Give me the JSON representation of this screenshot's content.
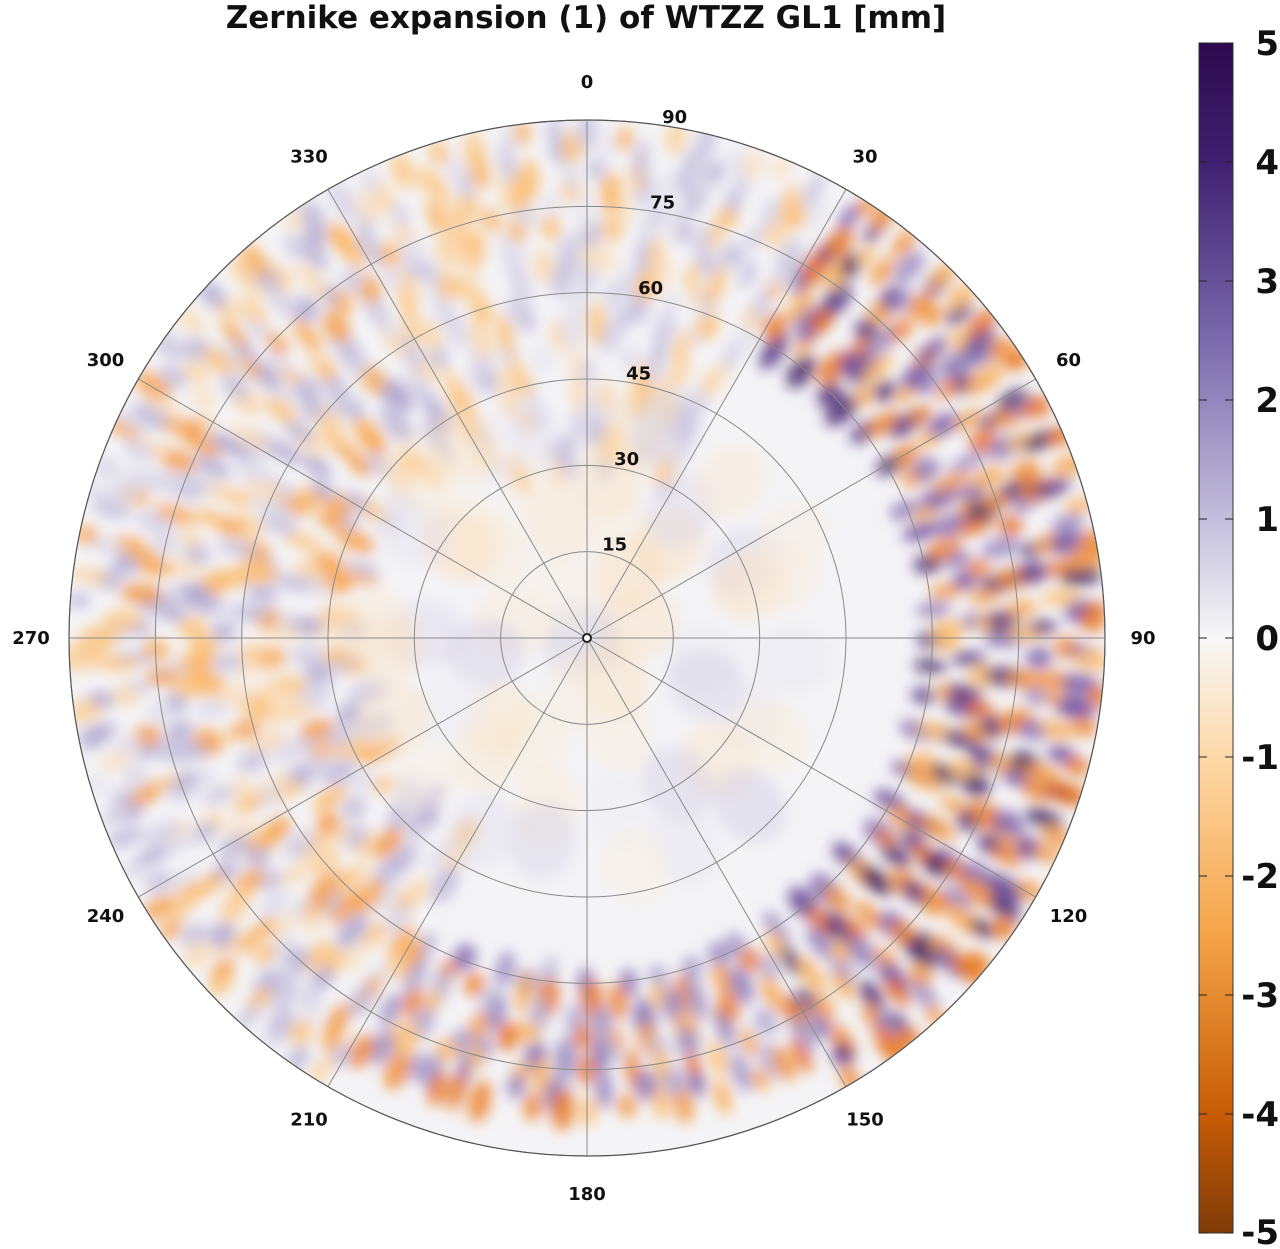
{
  "title": "Zernike expansion (1) of WTZZ GL1 [mm]",
  "chart_data": {
    "type": "heatmap",
    "projection": "polar",
    "title": "Zernike expansion (1) of WTZZ GL1 [mm]",
    "azimuth_ticks": [
      "0",
      "30",
      "60",
      "90",
      "120",
      "150",
      "180",
      "210",
      "240",
      "270",
      "300",
      "330"
    ],
    "radial_ticks": [
      "15",
      "30",
      "45",
      "60",
      "75",
      "90"
    ],
    "radial_range": [
      0,
      90
    ],
    "azimuth_direction": "clockwise",
    "azimuth_zero": "top",
    "grid": true,
    "colorbar": {
      "range": [
        -5,
        5
      ],
      "ticks": [
        "5",
        "4",
        "3",
        "2",
        "1",
        "0",
        "-1",
        "-2",
        "-3",
        "-4",
        "-5"
      ],
      "colors": {
        "max": "#2d0a4e",
        "high": "#5e3c99",
        "mid_high": "#b2abd2",
        "zero": "#f7f7f7",
        "mid_low": "#fdb863",
        "low": "#e66101",
        "min": "#7f3b08"
      },
      "position": "right"
    },
    "features": [
      {
        "azimuth_range": [
          30,
          150
        ],
        "radius_range": [
          60,
          90
        ],
        "pattern": "alternating strong rings",
        "min": -3.5,
        "max": 5
      },
      {
        "azimuth_range": [
          150,
          210
        ],
        "radius_range": [
          60,
          85
        ],
        "pattern": "alternating bands",
        "min": -3.5,
        "max": 3
      },
      {
        "azimuth_range": [
          210,
          330
        ],
        "radius_range": [
          40,
          90
        ],
        "pattern": "weak patches",
        "min": -2.5,
        "max": 2
      },
      {
        "azimuth_range": [
          330,
          30
        ],
        "radius_range": [
          30,
          90
        ],
        "pattern": "weak patches",
        "min": -2,
        "max": 1.5
      },
      {
        "azimuth_range": [
          0,
          360
        ],
        "radius_range": [
          0,
          45
        ],
        "pattern": "smooth low amplitude",
        "min": -0.8,
        "max": 1
      }
    ]
  }
}
